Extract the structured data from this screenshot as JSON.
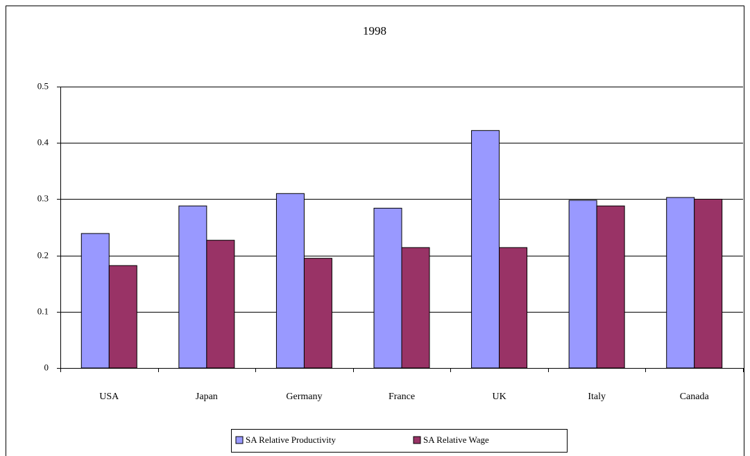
{
  "chart_data": {
    "type": "bar",
    "title": "1998",
    "categories": [
      "USA",
      "Japan",
      "Germany",
      "France",
      "UK",
      "Italy",
      "Canada"
    ],
    "series": [
      {
        "name": "SA Relative Productivity",
        "color": "#9999ff",
        "values": [
          0.239,
          0.288,
          0.31,
          0.284,
          0.422,
          0.298,
          0.303
        ]
      },
      {
        "name": "SA Relative Wage",
        "color": "#993366",
        "values": [
          0.182,
          0.227,
          0.195,
          0.214,
          0.214,
          0.288,
          0.3
        ]
      }
    ],
    "ylim": [
      0,
      0.5
    ],
    "yticks": [
      0,
      0.1,
      0.2,
      0.3,
      0.4,
      0.5
    ],
    "grid": true,
    "legend": "bottom"
  }
}
